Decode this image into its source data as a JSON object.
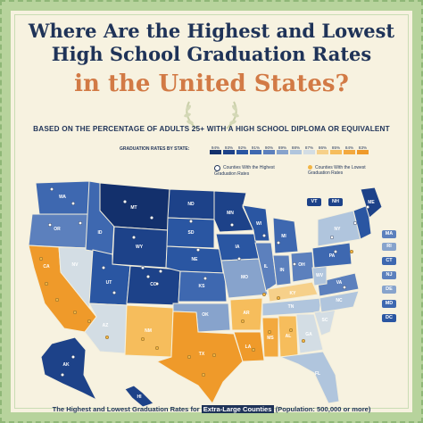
{
  "title": {
    "line1": "Where Are the Highest and Lowest",
    "line2": "High School Graduation Rates",
    "line3": "in the United States?"
  },
  "subtitle": "BASED ON THE PERCENTAGE OF ADULTS 25+ WITH A HIGH SCHOOL DIPLOMA OR EQUIVALENT",
  "legend": {
    "label": "GRADUATION RATES BY STATE:",
    "scale": [
      "94%",
      "93%",
      "92%",
      "91%",
      "90%",
      "89%",
      "88%",
      "87%",
      "86%",
      "85%",
      "84%",
      "83%"
    ],
    "colors": [
      "#13306c",
      "#1d4289",
      "#2a56a2",
      "#3e68b0",
      "#5c80bd",
      "#87a3cc",
      "#b0c5dd",
      "#d3dde4",
      "#f6d08a",
      "#f6bd5c",
      "#f3a93e",
      "#ef9a2a"
    ],
    "highest_label": "Counties With the Highest Graduation Rates",
    "lowest_label": "Counties With the Lowest Graduation Rates",
    "highest_color": "#ffffff",
    "lowest_color": "#f2b545"
  },
  "states": {
    "WA": "WA",
    "OR": "OR",
    "CA": "CA",
    "NV": "NV",
    "ID": "ID",
    "MT": "MT",
    "WY": "WY",
    "UT": "UT",
    "AZ": "AZ",
    "CO": "CO",
    "NM": "NM",
    "ND": "ND",
    "SD": "SD",
    "NE": "NE",
    "KS": "KS",
    "OK": "OK",
    "TX": "TX",
    "MN": "MN",
    "IA": "IA",
    "MO": "MO",
    "AR": "AR",
    "LA": "LA",
    "WI": "WI",
    "IL": "IL",
    "MI": "MI",
    "IN": "IN",
    "OH": "OH",
    "KY": "KY",
    "TN": "TN",
    "MS": "MS",
    "AL": "AL",
    "GA": "GA",
    "FL": "FL",
    "SC": "SC",
    "NC": "NC",
    "VA": "VA",
    "WV": "WV",
    "PA": "PA",
    "NY": "NY",
    "ME": "ME",
    "AK": "AK",
    "HI": "HI"
  },
  "callouts": {
    "left": [
      "VT",
      "NH"
    ],
    "right": [
      "MA",
      "RI",
      "CT",
      "NJ",
      "DE",
      "MD",
      "DC"
    ]
  },
  "bottom": {
    "prefix": "The Highest and Lowest Graduation Rates for",
    "highlight": "Extra-Large Counties",
    "suffix": "(Population: 500,000 or more)"
  }
}
